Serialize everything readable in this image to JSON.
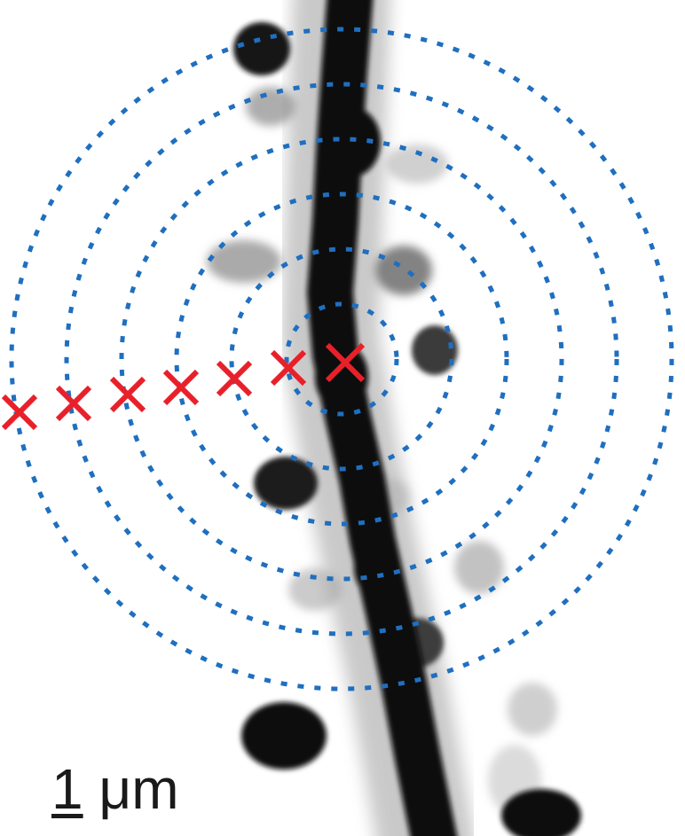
{
  "image": {
    "description_kind": "fluorescence micrograph of a dendrite with spines, inverted grayscale",
    "colors": {
      "background": "#ffffff",
      "dendrite": "#0a0a0a",
      "spine_dark": "#151515",
      "spine_faint": "#8a8a8a",
      "rings": "#1f6fc0",
      "markers": "#e8202a"
    }
  },
  "overlay": {
    "ring_count": 6,
    "marker_count": 7,
    "marker_symbol": "×"
  },
  "scale_bar": {
    "value": "1",
    "unit": "μm"
  }
}
